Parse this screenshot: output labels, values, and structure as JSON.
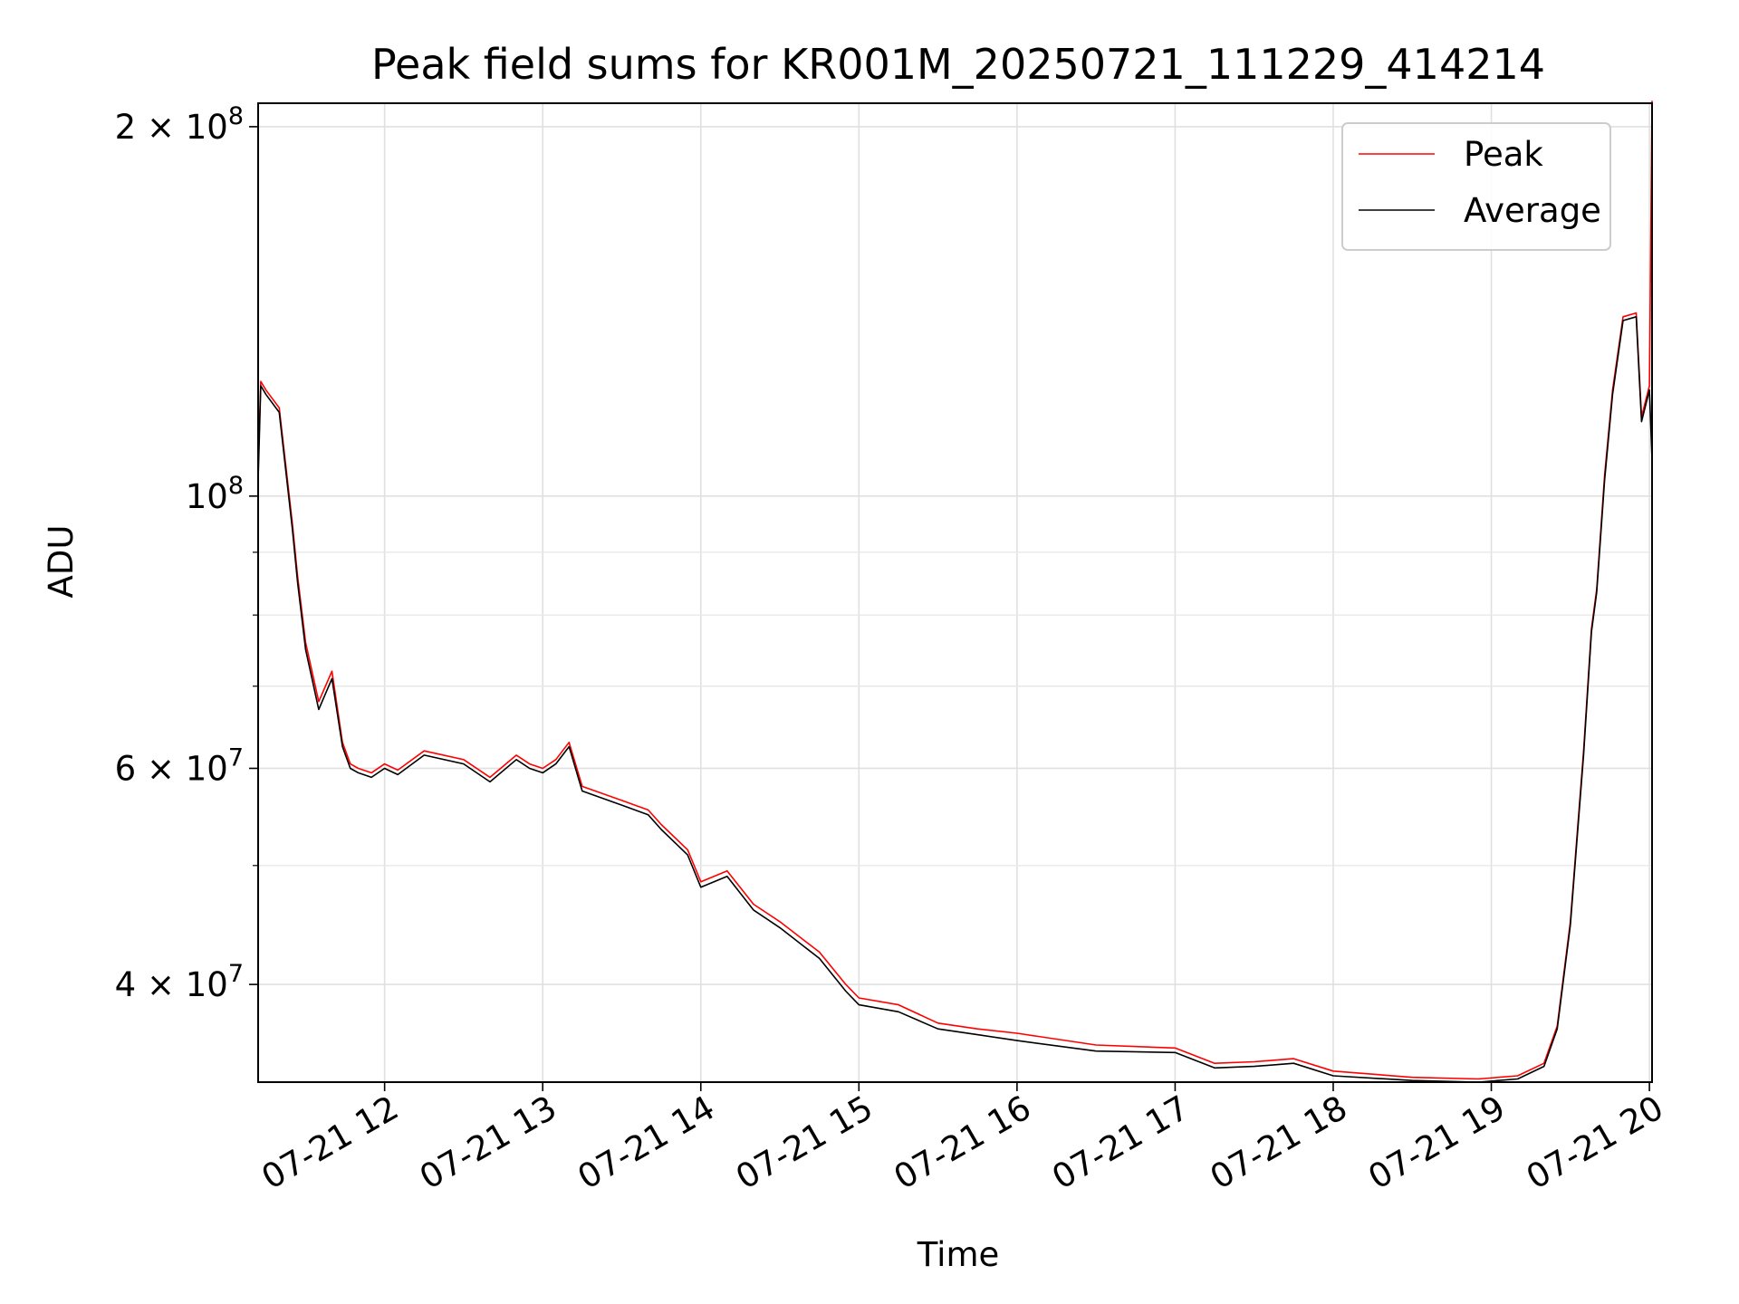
{
  "chart_data": {
    "type": "line",
    "title": "Peak field sums for KR001M_20250721_111229_414214",
    "xlabel": "Time",
    "ylabel": "ADU",
    "y_scale": "log",
    "x_range": [
      "2025-07-21 11:12",
      "2025-07-21 20:01"
    ],
    "ylim": [
      33300000,
      209000000
    ],
    "grid": true,
    "legend_placement": "top-right",
    "x_ticks": [
      "07-21 12",
      "07-21 13",
      "07-21 14",
      "07-21 15",
      "07-21 16",
      "07-21 17",
      "07-21 18",
      "07-21 19",
      "07-21 20"
    ],
    "y_ticks_major": [
      {
        "value": 40000000,
        "label": "4 × 10^7"
      },
      {
        "value": 60000000,
        "label": "6 × 10^7"
      },
      {
        "value": 100000000,
        "label": "10^8"
      },
      {
        "value": 200000000,
        "label": "2 × 10^8"
      }
    ],
    "y_ticks_minor": [
      50000000,
      70000000,
      80000000,
      90000000
    ],
    "series": [
      {
        "name": "Peak",
        "color": "#ff0000",
        "x": [
          "2025-07-21 11:12",
          "2025-07-21 11:13",
          "2025-07-21 11:15",
          "2025-07-21 11:20",
          "2025-07-21 11:25",
          "2025-07-21 11:27",
          "2025-07-21 11:30",
          "2025-07-21 11:35",
          "2025-07-21 11:40",
          "2025-07-21 11:44",
          "2025-07-21 11:47",
          "2025-07-21 11:50",
          "2025-07-21 11:55",
          "2025-07-21 12:00",
          "2025-07-21 12:05",
          "2025-07-21 12:15",
          "2025-07-21 12:30",
          "2025-07-21 12:40",
          "2025-07-21 12:50",
          "2025-07-21 12:55",
          "2025-07-21 13:00",
          "2025-07-21 13:05",
          "2025-07-21 13:10",
          "2025-07-21 13:15",
          "2025-07-21 13:30",
          "2025-07-21 13:40",
          "2025-07-21 13:45",
          "2025-07-21 13:55",
          "2025-07-21 14:00",
          "2025-07-21 14:10",
          "2025-07-21 14:20",
          "2025-07-21 14:30",
          "2025-07-21 14:45",
          "2025-07-21 14:55",
          "2025-07-21 15:00",
          "2025-07-21 15:15",
          "2025-07-21 15:30",
          "2025-07-21 15:45",
          "2025-07-21 16:00",
          "2025-07-21 16:30",
          "2025-07-21 17:00",
          "2025-07-21 17:15",
          "2025-07-21 17:30",
          "2025-07-21 17:45",
          "2025-07-21 18:00",
          "2025-07-21 18:30",
          "2025-07-21 18:55",
          "2025-07-21 19:10",
          "2025-07-21 19:20",
          "2025-07-21 19:25",
          "2025-07-21 19:30",
          "2025-07-21 19:35",
          "2025-07-21 19:38",
          "2025-07-21 19:40",
          "2025-07-21 19:43",
          "2025-07-21 19:46",
          "2025-07-21 19:50",
          "2025-07-21 19:55",
          "2025-07-21 19:57",
          "2025-07-21 20:00",
          "2025-07-21 20:01"
        ],
        "values": [
          105000000,
          124000000,
          122000000,
          118000000,
          95000000,
          86000000,
          76000000,
          68000000,
          72000000,
          63000000,
          60500000,
          60000000,
          59500000,
          60500000,
          59800000,
          62000000,
          61000000,
          59000000,
          61500000,
          60500000,
          60000000,
          61000000,
          63000000,
          58000000,
          56500000,
          55500000,
          54000000,
          51500000,
          48500000,
          49500000,
          46500000,
          45000000,
          42500000,
          40000000,
          39000000,
          38500000,
          37200000,
          36800000,
          36500000,
          35700000,
          35500000,
          34500000,
          34600000,
          34800000,
          34000000,
          33600000,
          33500000,
          33700000,
          34500000,
          37000000,
          45000000,
          62000000,
          78000000,
          84000000,
          104000000,
          122000000,
          140000000,
          141000000,
          116000000,
          123000000,
          210000000
        ]
      },
      {
        "name": "Average",
        "color": "#000000",
        "x": [
          "2025-07-21 11:12",
          "2025-07-21 11:13",
          "2025-07-21 11:15",
          "2025-07-21 11:20",
          "2025-07-21 11:25",
          "2025-07-21 11:27",
          "2025-07-21 11:30",
          "2025-07-21 11:35",
          "2025-07-21 11:40",
          "2025-07-21 11:44",
          "2025-07-21 11:47",
          "2025-07-21 11:50",
          "2025-07-21 11:55",
          "2025-07-21 12:00",
          "2025-07-21 12:05",
          "2025-07-21 12:15",
          "2025-07-21 12:30",
          "2025-07-21 12:40",
          "2025-07-21 12:50",
          "2025-07-21 12:55",
          "2025-07-21 13:00",
          "2025-07-21 13:05",
          "2025-07-21 13:10",
          "2025-07-21 13:15",
          "2025-07-21 13:30",
          "2025-07-21 13:40",
          "2025-07-21 13:45",
          "2025-07-21 13:55",
          "2025-07-21 14:00",
          "2025-07-21 14:10",
          "2025-07-21 14:20",
          "2025-07-21 14:30",
          "2025-07-21 14:45",
          "2025-07-21 14:55",
          "2025-07-21 15:00",
          "2025-07-21 15:15",
          "2025-07-21 15:30",
          "2025-07-21 15:45",
          "2025-07-21 16:00",
          "2025-07-21 16:30",
          "2025-07-21 17:00",
          "2025-07-21 17:15",
          "2025-07-21 17:30",
          "2025-07-21 17:45",
          "2025-07-21 18:00",
          "2025-07-21 18:30",
          "2025-07-21 18:55",
          "2025-07-21 19:10",
          "2025-07-21 19:20",
          "2025-07-21 19:25",
          "2025-07-21 19:30",
          "2025-07-21 19:35",
          "2025-07-21 19:38",
          "2025-07-21 19:40",
          "2025-07-21 19:43",
          "2025-07-21 19:46",
          "2025-07-21 19:50",
          "2025-07-21 19:55",
          "2025-07-21 19:57",
          "2025-07-21 20:00",
          "2025-07-21 20:01"
        ],
        "values": [
          103000000,
          123000000,
          121000000,
          117000000,
          94000000,
          85000000,
          75000000,
          67000000,
          71000000,
          62500000,
          60000000,
          59500000,
          59000000,
          60000000,
          59300000,
          61500000,
          60500000,
          58500000,
          61000000,
          60000000,
          59500000,
          60500000,
          62500000,
          57500000,
          56000000,
          55000000,
          53500000,
          51000000,
          48000000,
          49000000,
          46000000,
          44500000,
          42000000,
          39500000,
          38500000,
          38000000,
          36800000,
          36400000,
          36000000,
          35300000,
          35200000,
          34200000,
          34300000,
          34500000,
          33700000,
          33400000,
          33300000,
          33500000,
          34300000,
          36800000,
          44700000,
          61500000,
          77500000,
          83500000,
          103000000,
          121000000,
          139000000,
          140000000,
          115000000,
          122000000,
          107000000
        ]
      }
    ]
  }
}
